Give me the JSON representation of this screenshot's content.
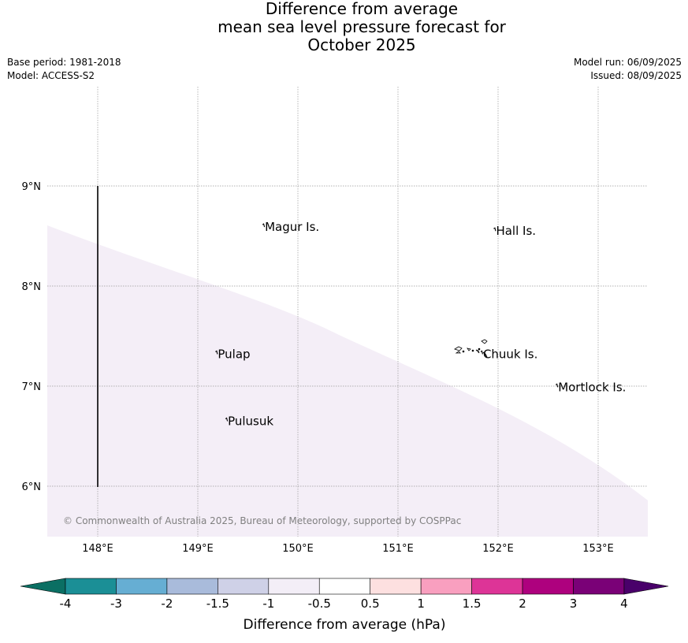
{
  "title": {
    "line1": "Difference from average",
    "line2": "mean sea level pressure forecast for",
    "line3": "October 2025"
  },
  "meta_left": {
    "base_period": "Base period: 1981-2018",
    "model": "Model: ACCESS-S2"
  },
  "meta_right": {
    "model_run": "Model run: 06/09/2025",
    "issued": "Issued: 08/09/2025"
  },
  "map": {
    "lon_ticks": [
      {
        "value": 148,
        "label": "148°E"
      },
      {
        "value": 149,
        "label": "149°E"
      },
      {
        "value": 150,
        "label": "150°E"
      },
      {
        "value": 151,
        "label": "151°E"
      },
      {
        "value": 152,
        "label": "152°E"
      },
      {
        "value": 153,
        "label": "153°E"
      }
    ],
    "lat_ticks": [
      {
        "value": 9,
        "label": "9°N"
      },
      {
        "value": 8,
        "label": "8°N"
      },
      {
        "value": 7,
        "label": "7°N"
      },
      {
        "value": 6,
        "label": "6°N"
      }
    ],
    "places": [
      {
        "name": "Magur Is.",
        "lon": 149.67,
        "lat": 8.55
      },
      {
        "name": "Hall Is.",
        "lon": 151.98,
        "lat": 8.51
      },
      {
        "name": "Pulap",
        "lon": 149.2,
        "lat": 7.28
      },
      {
        "name": "Chuuk Is.",
        "lon": 151.85,
        "lat": 7.28
      },
      {
        "name": "Mortlock Is.",
        "lon": 152.6,
        "lat": 6.95
      },
      {
        "name": "Pulusuk",
        "lon": 149.3,
        "lat": 6.61
      }
    ],
    "copyright": "© Commonwealth of Australia 2025, Bureau of Meteorology, supported by COSPPac",
    "shading_color": "#f4eef7"
  },
  "colorbar": {
    "label": "Difference from average (hPa)",
    "tick_labels": [
      "-4",
      "-3",
      "-2",
      "-1.5",
      "-1",
      "-0.5",
      "0.5",
      "1",
      "1.5",
      "2",
      "3",
      "4"
    ],
    "colors": [
      "#0b6f63",
      "#1b8f96",
      "#66aed3",
      "#a9bbdb",
      "#cfd1e7",
      "#f3eef7",
      "#ffffff",
      "#fde0e0",
      "#f99fbf",
      "#dd3497",
      "#ae017e",
      "#7a0177",
      "#49006a"
    ]
  }
}
